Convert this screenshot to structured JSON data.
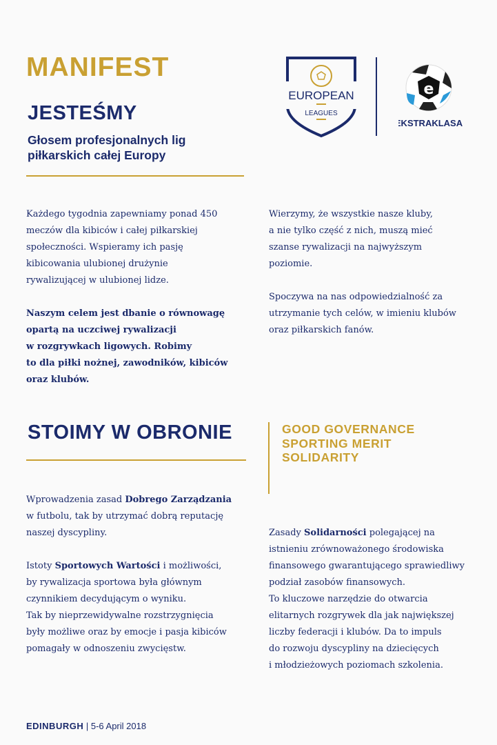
{
  "header": {
    "title": "MANIFEST",
    "heading": "JESTEŚMY",
    "subtitle_lines": [
      "Głosem profesjonalnych lig",
      "piłkarskich całej Europy"
    ]
  },
  "logos": {
    "european_leagues": {
      "line1": "EUROPEAN",
      "line2": "LEAGUES"
    },
    "ekstraklasa": "EKSTRAKLASA"
  },
  "colors": {
    "navy": "#1b2a6b",
    "gold": "#c9a032",
    "background": "#fafafa"
  },
  "section1": {
    "left": [
      [
        [
          {
            "t": "Każdego tygodnia zapewniamy ponad 450"
          }
        ],
        [
          {
            "t": "meczów dla kibiców i całej piłkarskiej"
          }
        ],
        [
          {
            "t": "społeczności. Wspieramy ich pasję"
          }
        ],
        [
          {
            "t": "kibicowania ulubionej drużynie"
          }
        ],
        [
          {
            "t": "rywalizującej w ulubionej lidze."
          }
        ]
      ],
      [
        [
          {
            "t": "Naszym celem jest dbanie o równowagę",
            "b": true
          }
        ],
        [
          {
            "t": "opartą na uczciwej rywalizacji",
            "b": true
          }
        ],
        [
          {
            "t": "w rozgrywkach ligowych. Robimy",
            "b": true
          }
        ],
        [
          {
            "t": "to dla piłki nożnej, zawodników, kibiców",
            "b": true
          }
        ],
        [
          {
            "t": "oraz klubów.",
            "b": true
          }
        ]
      ]
    ],
    "right": [
      [
        [
          {
            "t": "Wierzymy, że wszystkie nasze kluby,"
          }
        ],
        [
          {
            "t": "a nie tylko część z nich, muszą mieć"
          }
        ],
        [
          {
            "t": "szanse rywalizacji na najwyższym"
          }
        ],
        [
          {
            "t": "poziomie."
          }
        ]
      ],
      [
        [
          {
            "t": "Spoczywa na nas odpowiedzialność za"
          }
        ],
        [
          {
            "t": "utrzymanie tych celów, w imieniu klubów"
          }
        ],
        [
          {
            "t": "oraz piłkarskich fanów."
          }
        ]
      ]
    ]
  },
  "section2": {
    "heading": "STOIMY W OBRONIE",
    "values": [
      "GOOD GOVERNANCE",
      "SPORTING MERIT",
      "SOLIDARITY"
    ],
    "left": [
      [
        [
          {
            "t": "Wprowadzenia zasad "
          },
          {
            "t": "Dobrego Zarządzania",
            "b": true
          }
        ],
        [
          {
            "t": "w futbolu, tak by utrzymać dobrą reputację"
          }
        ],
        [
          {
            "t": "naszej dyscypliny."
          }
        ]
      ],
      [
        [
          {
            "t": "Istoty "
          },
          {
            "t": "Sportowych Wartości",
            "b": true
          },
          {
            "t": " i możliwości,"
          }
        ],
        [
          {
            "t": "by rywalizacja sportowa była głównym"
          }
        ],
        [
          {
            "t": "czynnikiem decydującym o wyniku."
          }
        ],
        [
          {
            "t": "Tak by nieprzewidywalne rozstrzygnięcia"
          }
        ],
        [
          {
            "t": "były możliwe oraz by emocje i pasja kibiców"
          }
        ],
        [
          {
            "t": "pomagały w odnoszeniu zwycięstw."
          }
        ]
      ]
    ],
    "right": [
      [
        [
          {
            "t": "Zasady "
          },
          {
            "t": "Solidarności",
            "b": true
          },
          {
            "t": " polegającej na"
          }
        ],
        [
          {
            "t": "istnieniu zrównoważonego środowiska"
          }
        ],
        [
          {
            "t": "finansowego gwarantującego sprawiedliwy"
          }
        ],
        [
          {
            "t": "podział zasobów finansowych."
          }
        ],
        [
          {
            "t": "To kluczowe narzędzie do otwarcia"
          }
        ],
        [
          {
            "t": "elitarnych rozgrywek dla jak największej"
          }
        ],
        [
          {
            "t": "liczby federacji i klubów. Da to impuls"
          }
        ],
        [
          {
            "t": "do rozwoju dyscypliny na dziecięcych"
          }
        ],
        [
          {
            "t": "i młodzieżowych poziomach szkolenia."
          }
        ]
      ]
    ]
  },
  "footer": {
    "city": "EDINBURGH",
    "date": "| 5-6 April 2018"
  }
}
